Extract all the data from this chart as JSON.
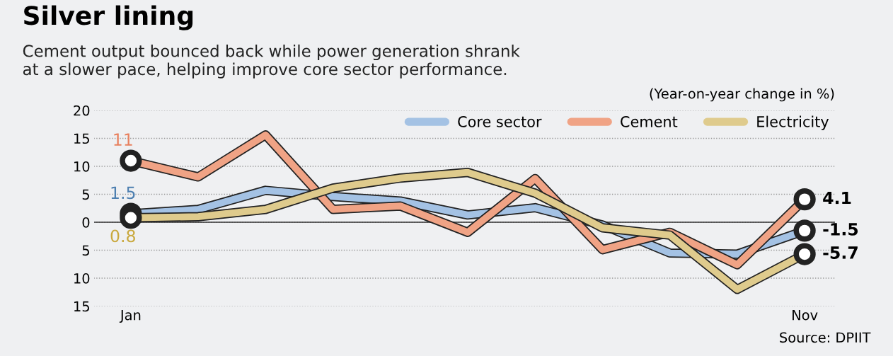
{
  "chart_data": {
    "type": "line",
    "title": "Silver lining",
    "subtitle": "Cement output bounced back while power generation shrank\nat a slower pace, helping improve core sector performance.",
    "categories": [
      "Jan",
      null,
      null,
      null,
      null,
      null,
      null,
      null,
      null,
      null,
      "Nov"
    ],
    "series": [
      {
        "name": "Core sector",
        "color": "#a4c2e4",
        "values": [
          1.5,
          2.3,
          5.7,
          4.6,
          3.8,
          1.3,
          2.6,
          -0.5,
          -5.5,
          -5.7,
          -1.5
        ],
        "value_labels": [
          "1.5",
          null,
          null,
          null,
          null,
          null,
          null,
          null,
          null,
          null,
          "-1.5"
        ]
      },
      {
        "name": "Cement",
        "color": "#f0a385",
        "values": [
          11,
          8.1,
          15.6,
          2.3,
          2.9,
          -1.8,
          7.8,
          -4.9,
          -1.8,
          -7.6,
          4.1
        ],
        "value_labels": [
          "11",
          null,
          null,
          null,
          null,
          null,
          null,
          null,
          null,
          null,
          "4.1"
        ]
      },
      {
        "name": "Electricity",
        "color": "#dfcb8d",
        "values": [
          0.8,
          1.0,
          2.3,
          6.1,
          7.9,
          8.9,
          5.2,
          -1.0,
          -2.3,
          -12.0,
          -5.7
        ],
        "value_labels": [
          "0.8",
          null,
          null,
          null,
          null,
          null,
          null,
          null,
          null,
          null,
          "-5.7"
        ]
      }
    ],
    "ylim": [
      -15,
      20
    ],
    "yticks": [
      20,
      15,
      10,
      5,
      0,
      {
        "value": -5,
        "label": "5"
      },
      {
        "value": -10,
        "label": "10"
      },
      {
        "value": -15,
        "label": "15"
      }
    ],
    "ref_lines": [
      {
        "axis": "y",
        "value": 0,
        "color": "#333333"
      }
    ],
    "grid": "y",
    "legend": "top right",
    "line_style": "solid",
    "annotations": [
      "(Year-on-year change in %)",
      "Source: DPIIT"
    ]
  }
}
